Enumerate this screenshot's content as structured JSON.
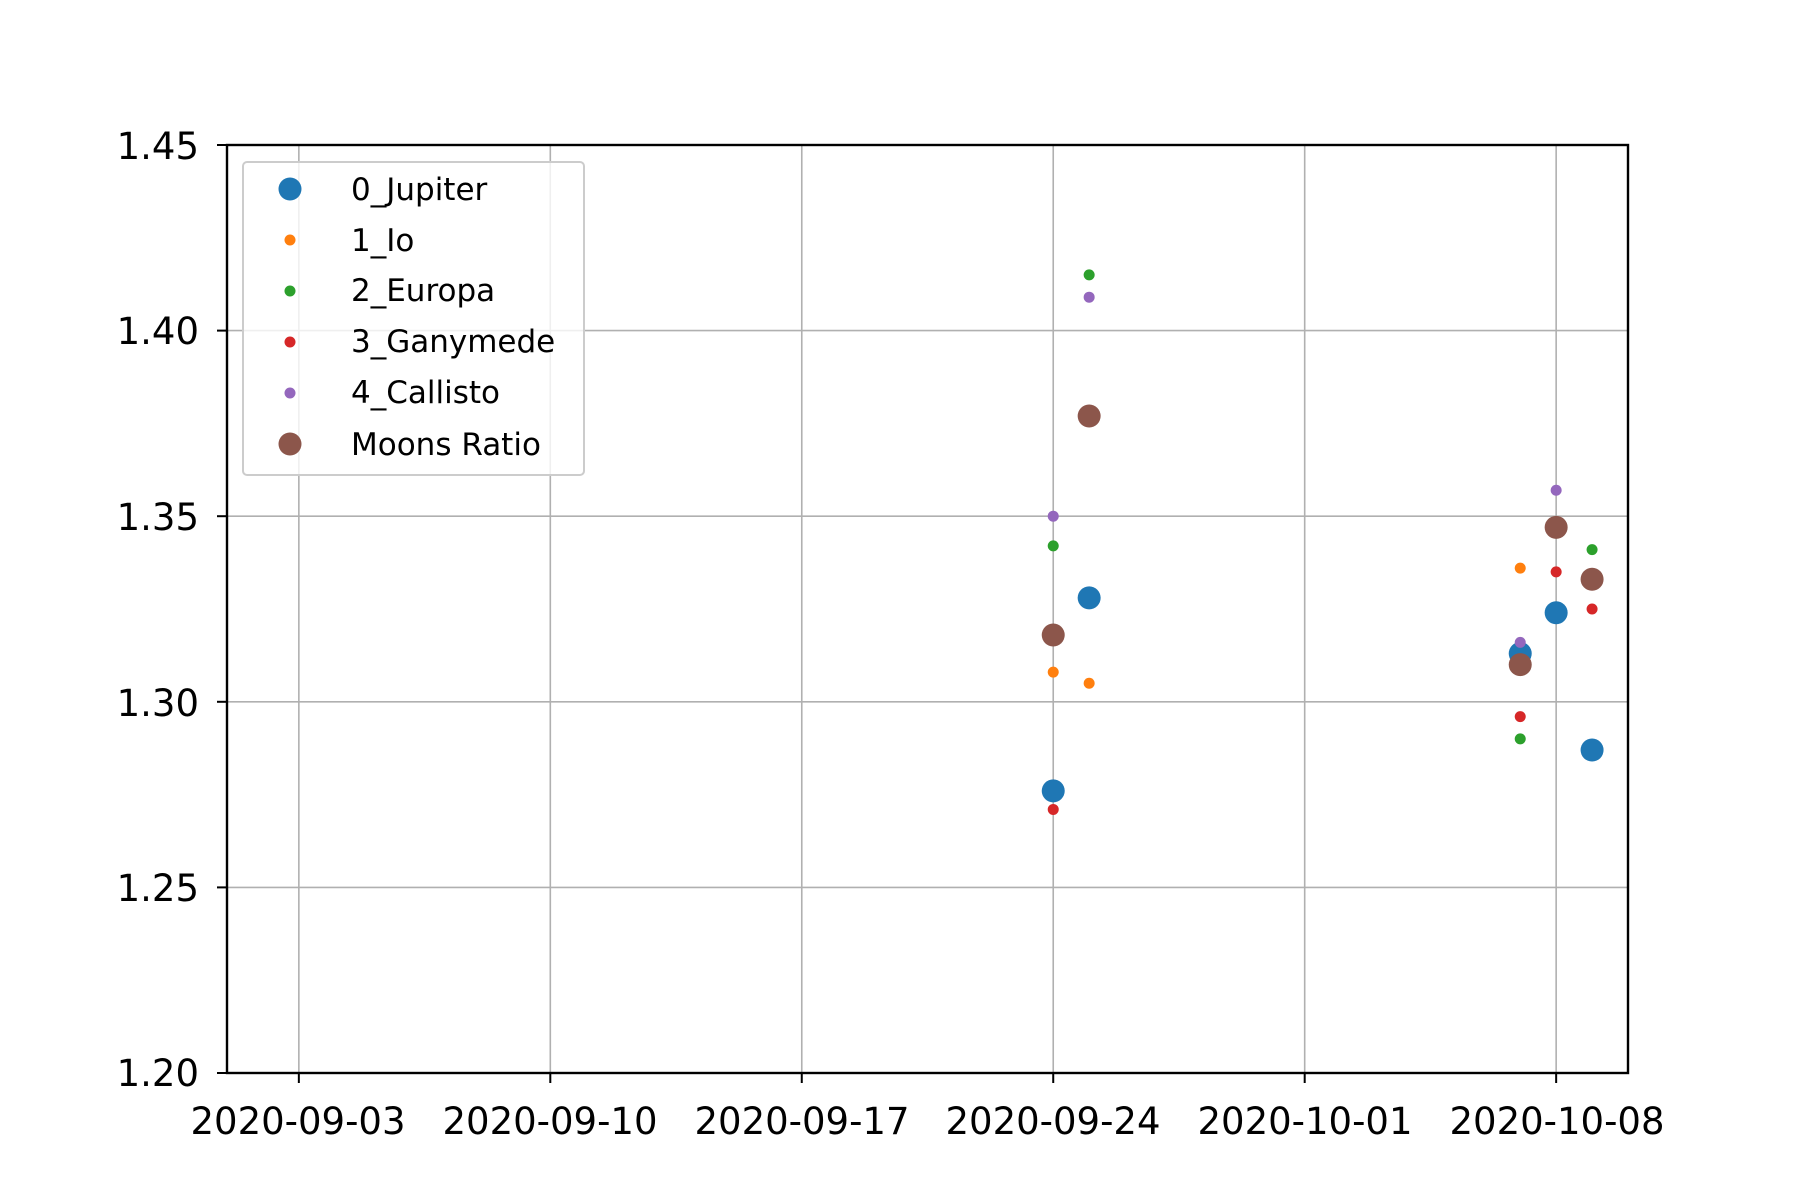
{
  "chart_data": {
    "type": "scatter",
    "title": "",
    "xlabel": "",
    "ylabel": "",
    "x_tick_labels": [
      "2020-09-03",
      "2020-09-10",
      "2020-09-17",
      "2020-09-24",
      "2020-10-01",
      "2020-10-08"
    ],
    "y_tick_labels": [
      "1.20",
      "1.25",
      "1.30",
      "1.35",
      "1.40",
      "1.45"
    ],
    "xlim": [
      "2020-09-01",
      "2020-10-10"
    ],
    "ylim": [
      1.2,
      1.45
    ],
    "grid": true,
    "legend_position": "upper-left",
    "x": [
      "2020-09-24",
      "2020-09-25",
      "2020-10-07",
      "2020-10-08",
      "2020-10-09"
    ],
    "series": [
      {
        "name": "0_Jupiter",
        "color": "#1f77b4",
        "marker": "large",
        "values": [
          1.276,
          1.328,
          1.313,
          1.324,
          1.287
        ]
      },
      {
        "name": "1_Io",
        "color": "#ff7f0e",
        "marker": "small",
        "values": [
          1.308,
          1.305,
          1.336,
          null,
          null
        ]
      },
      {
        "name": "2_Europa",
        "color": "#2ca02c",
        "marker": "small",
        "values": [
          1.342,
          1.415,
          1.29,
          null,
          1.341
        ]
      },
      {
        "name": "3_Ganymede",
        "color": "#d62728",
        "marker": "small",
        "values": [
          1.271,
          null,
          1.296,
          1.335,
          1.325
        ]
      },
      {
        "name": "4_Callisto",
        "color": "#9467bd",
        "marker": "small",
        "values": [
          1.35,
          1.409,
          1.316,
          1.357,
          null
        ]
      },
      {
        "name": "Moons Ratio",
        "color": "#8c564b",
        "marker": "large",
        "values": [
          1.318,
          1.377,
          1.31,
          1.347,
          1.333
        ]
      }
    ]
  }
}
